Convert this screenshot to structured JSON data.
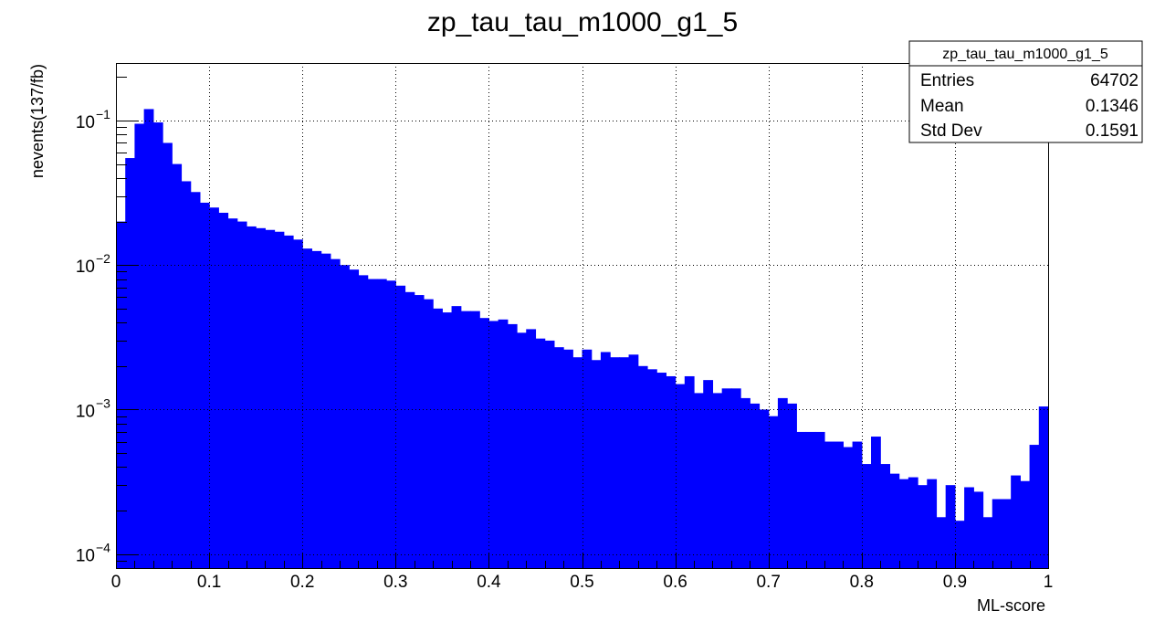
{
  "chart_data": {
    "type": "bar",
    "title": "zp_tau_tau_m1000_g1_5",
    "xlabel": "ML-score",
    "ylabel": "nevents(137/fb)",
    "xlim": [
      0,
      1
    ],
    "ylim": [
      8e-05,
      0.25
    ],
    "yscale": "log",
    "grid": true,
    "bar_color": "#0000ff",
    "bin_width": 0.01,
    "xticks": [
      "0",
      "0.1",
      "0.2",
      "0.3",
      "0.4",
      "0.5",
      "0.6",
      "0.7",
      "0.8",
      "0.9",
      "1"
    ],
    "yticks": [
      {
        "base": "10",
        "exp": "−1",
        "value": 0.1
      },
      {
        "base": "10",
        "exp": "−2",
        "value": 0.01
      },
      {
        "base": "10",
        "exp": "−3",
        "value": 0.001
      },
      {
        "base": "10",
        "exp": "−4",
        "value": 0.0001
      }
    ],
    "values": [
      0.02,
      0.055,
      0.095,
      0.12,
      0.097,
      0.07,
      0.05,
      0.038,
      0.032,
      0.027,
      0.025,
      0.023,
      0.021,
      0.02,
      0.0185,
      0.018,
      0.0175,
      0.017,
      0.016,
      0.015,
      0.013,
      0.0125,
      0.012,
      0.011,
      0.01,
      0.0093,
      0.0085,
      0.008,
      0.008,
      0.0078,
      0.0072,
      0.0065,
      0.0062,
      0.0058,
      0.005,
      0.0047,
      0.0052,
      0.0048,
      0.0048,
      0.0043,
      0.0041,
      0.0042,
      0.0039,
      0.0034,
      0.0036,
      0.0031,
      0.003,
      0.0027,
      0.0026,
      0.0023,
      0.0026,
      0.0022,
      0.0025,
      0.0023,
      0.0023,
      0.0024,
      0.002,
      0.0019,
      0.0018,
      0.0017,
      0.0015,
      0.0017,
      0.0013,
      0.0016,
      0.0013,
      0.0014,
      0.0014,
      0.0012,
      0.0011,
      0.001,
      0.0009,
      0.0012,
      0.0011,
      0.0007,
      0.0007,
      0.0007,
      0.0006,
      0.0006,
      0.00055,
      0.0006,
      0.00042,
      0.00065,
      0.00042,
      0.00036,
      0.00033,
      0.00034,
      0.0003,
      0.00033,
      0.00018,
      0.0003,
      0.00017,
      0.00029,
      0.00027,
      0.00018,
      0.00024,
      0.00024,
      0.00035,
      0.00032,
      0.00057,
      0.00105
    ],
    "stats": {
      "title": "zp_tau_tau_m1000_g1_5",
      "rows": [
        {
          "label": "Entries",
          "value": "64702"
        },
        {
          "label": "Mean",
          "value": "0.1346"
        },
        {
          "label": "Std Dev",
          "value": "0.1591"
        }
      ]
    }
  }
}
